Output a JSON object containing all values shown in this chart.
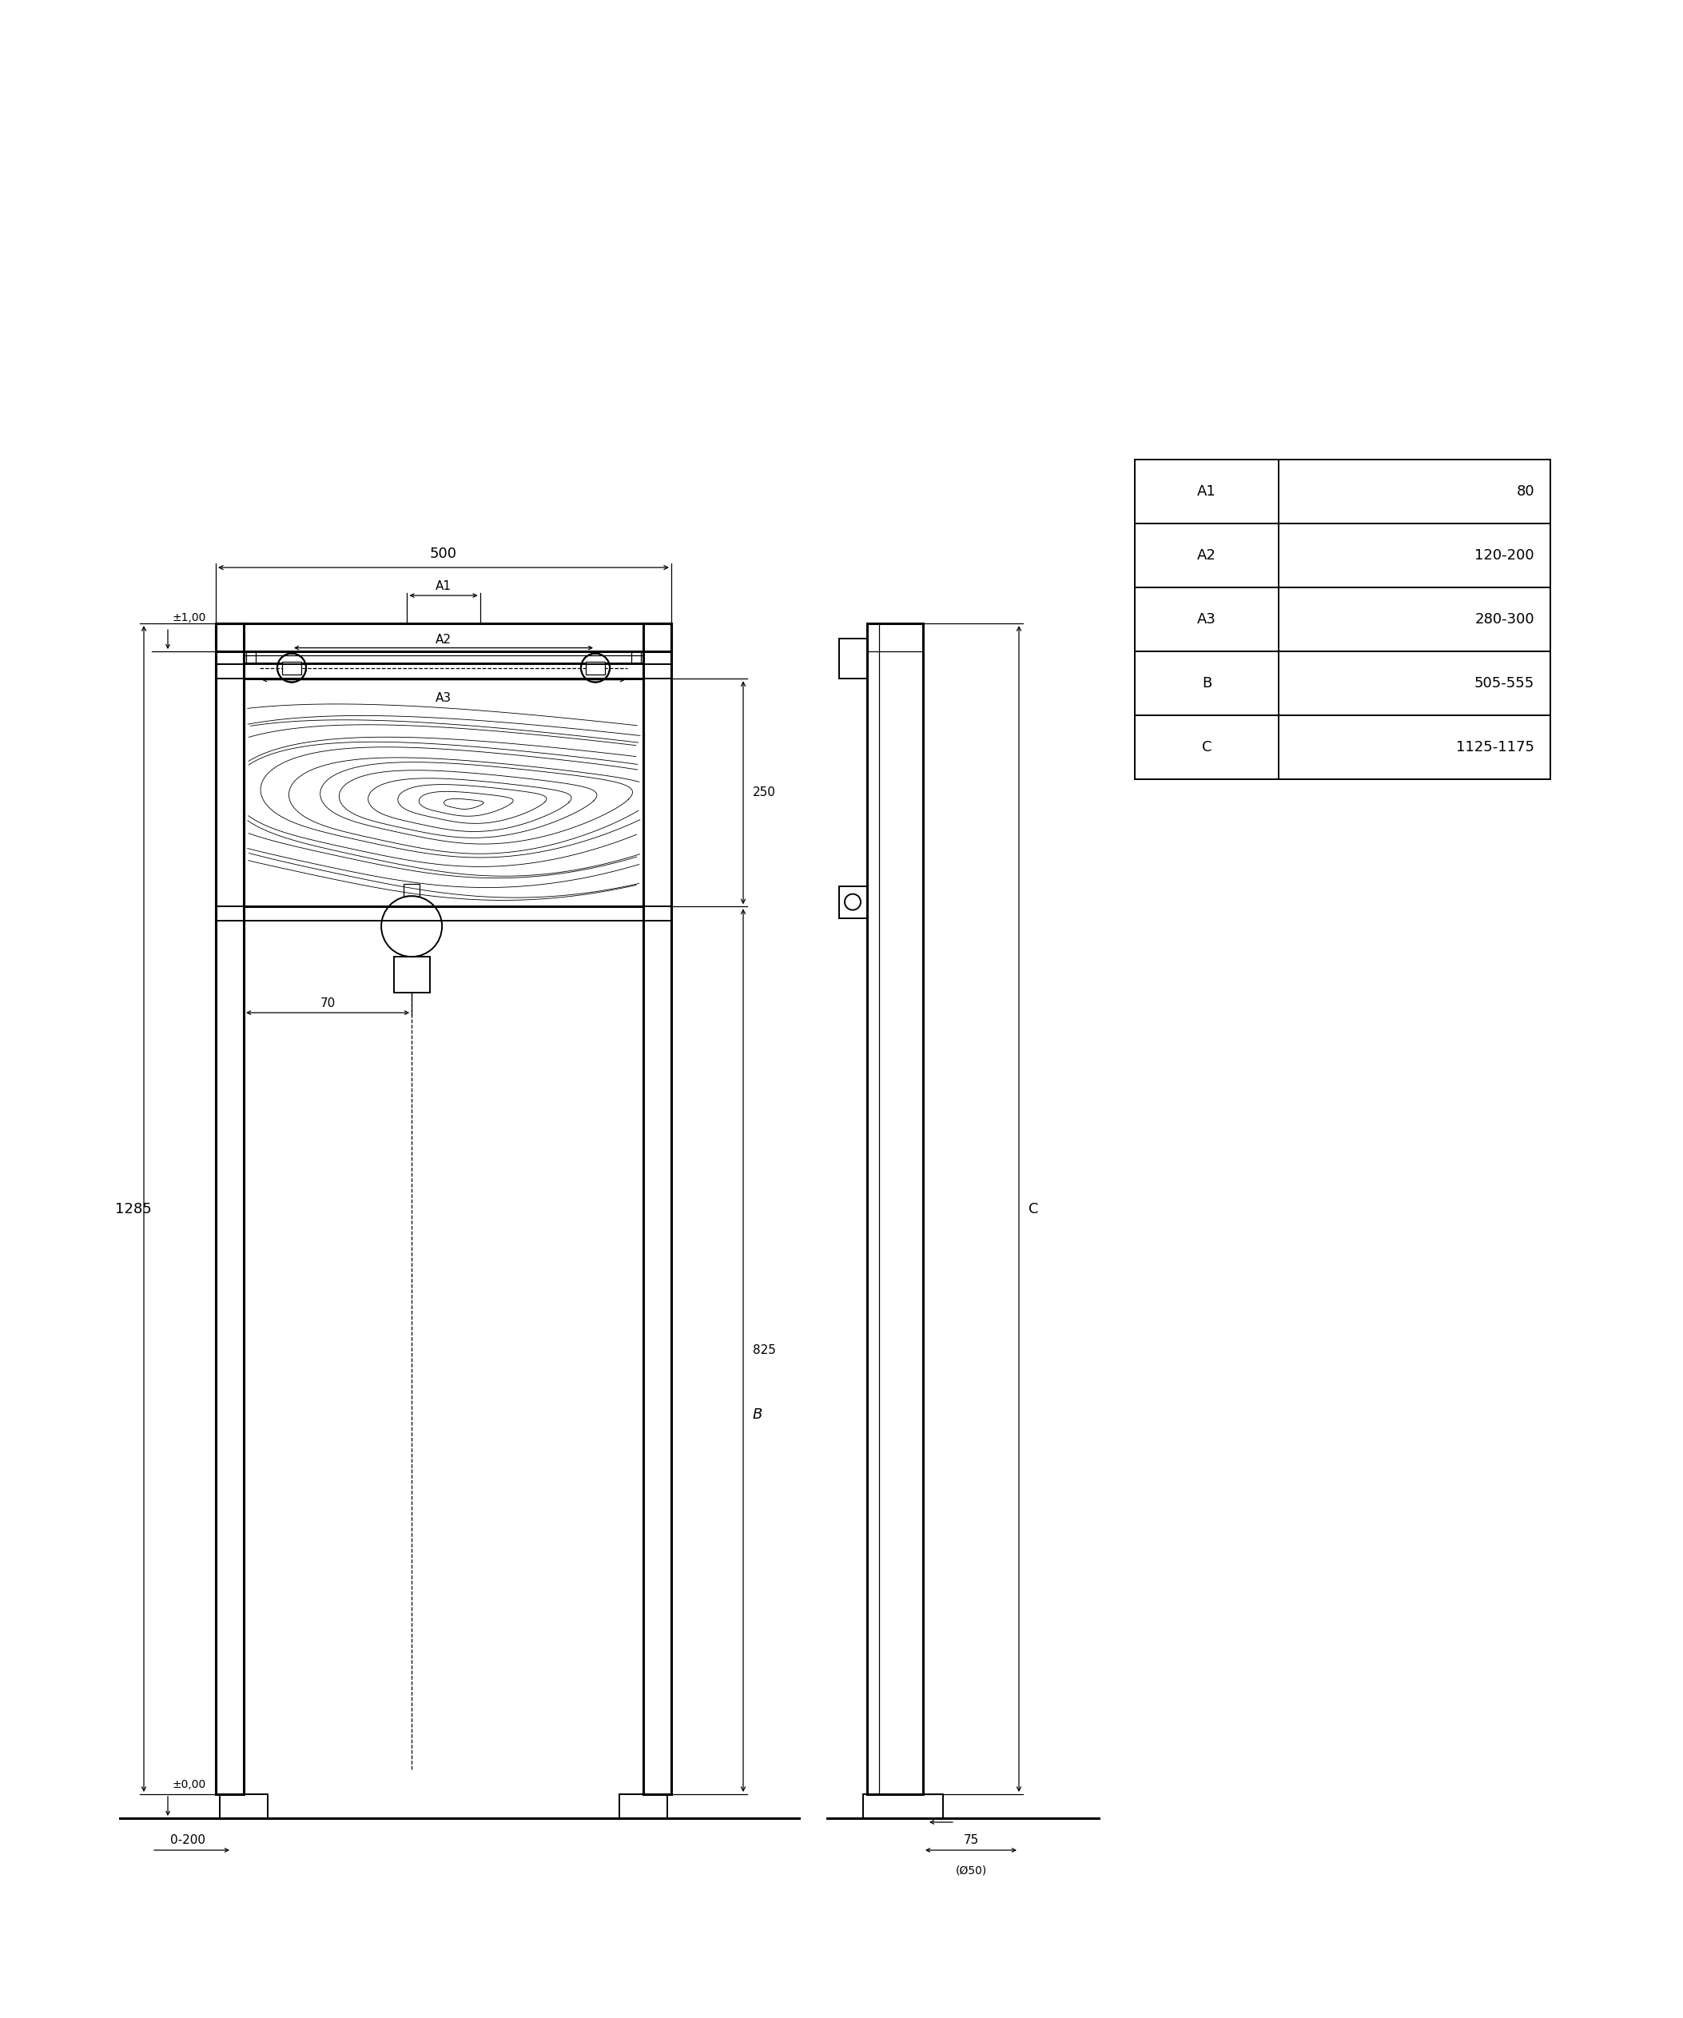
{
  "bg_color": "#ffffff",
  "line_color": "#000000",
  "fig_width": 21.06,
  "fig_height": 25.25,
  "table_data": [
    [
      "A1",
      "80"
    ],
    [
      "A2",
      "120-200"
    ],
    [
      "A3",
      "280-300"
    ],
    [
      "B",
      "505-555"
    ],
    [
      "C",
      "1125-1175"
    ]
  ],
  "dim_500": "500",
  "dim_A1": "A1",
  "dim_A2": "A2",
  "dim_A3": "A3",
  "dim_1285": "1285",
  "dim_pm100": "±1,00",
  "dim_pm000": "±0,00",
  "dim_0200": "0-200",
  "dim_250": "250",
  "dim_825": "825",
  "dim_B": "B",
  "dim_C": "C",
  "dim_70": "70",
  "dim_75": "75",
  "dim_D50": "(Ø50)"
}
